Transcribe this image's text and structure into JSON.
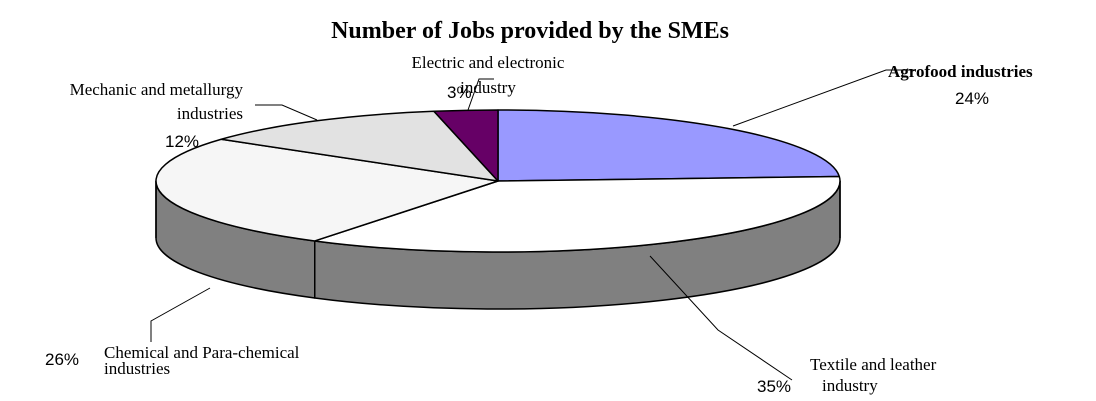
{
  "chart_data": {
    "type": "pie",
    "title": "Number of Jobs provided by the SMEs",
    "three_d": true,
    "slices": [
      {
        "label_lines": [
          "Agrofood industries"
        ],
        "value": 24,
        "value_label": "24%",
        "color": "#9999ff",
        "bold": true
      },
      {
        "label_lines": [
          "Textile and leather",
          "industry"
        ],
        "value": 35,
        "value_label": "35%",
        "color": "#ffffff",
        "bold": false
      },
      {
        "label_lines": [
          "Chemical and Para-chemical",
          "industries"
        ],
        "value": 26,
        "value_label": "26%",
        "color": "#f6f6f6",
        "bold": false
      },
      {
        "label_lines": [
          "Mechanic and metallurgy",
          "industries"
        ],
        "value": 12,
        "value_label": "12%",
        "color": "#e2e2e2",
        "bold": false
      },
      {
        "label_lines": [
          "Electric and electronic",
          "industry"
        ],
        "value": 3,
        "value_label": "3%",
        "color": "#660066",
        "bold": false
      }
    ],
    "side_color": "#808080"
  }
}
